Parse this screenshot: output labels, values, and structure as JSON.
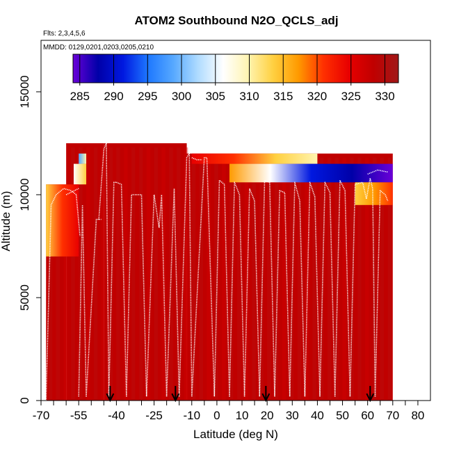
{
  "chart_data": {
    "type": "heatmap",
    "title": "ATOM2 Southbound N2O_QCLS_adj",
    "flights_note": "Flts: 2,3,4,5,6",
    "dates_note": "MMDD: 0129,0201,0203,0205,0210",
    "xlabel": "Latitude (deg N)",
    "ylabel": "Altitude (m)",
    "xlim": [
      -70,
      85
    ],
    "ylim": [
      0,
      17500
    ],
    "x_ticks": [
      -70,
      -55,
      -40,
      -25,
      -10,
      0,
      10,
      20,
      30,
      40,
      50,
      60,
      70,
      80
    ],
    "x_tick_labels": [
      "-70",
      "-55",
      "-40",
      "-25",
      "-10",
      "0",
      "10",
      "20",
      "30",
      "40",
      "50",
      "60",
      "70",
      "80"
    ],
    "x_minor_ticks": [
      -65,
      -60,
      -50,
      -45,
      -35,
      -30,
      -20,
      -15,
      -5,
      5,
      15,
      25,
      35,
      45,
      55,
      65,
      75
    ],
    "y_ticks": [
      0,
      5000,
      10000,
      15000
    ],
    "y_tick_labels": [
      "0",
      "5000",
      "10000",
      "15000"
    ],
    "colorbar": {
      "range": [
        284,
        332
      ],
      "ticks": [
        285,
        290,
        295,
        300,
        305,
        310,
        315,
        320,
        325,
        330
      ],
      "tick_labels": [
        "285",
        "290",
        "295",
        "300",
        "305",
        "310",
        "315",
        "320",
        "325",
        "330"
      ],
      "colors": [
        "#6a00d8",
        "#0000a8",
        "#0018e0",
        "#1e78ff",
        "#56a8ff",
        "#b0dcff",
        "#ffffff",
        "#fff4b0",
        "#ffd040",
        "#ff9a00",
        "#ff3000",
        "#e80000",
        "#c00000",
        "#a01818"
      ]
    },
    "background_value": 327,
    "upper_boundary": [
      {
        "lat_from": -68,
        "lat_to": -60,
        "top_alt": 10500
      },
      {
        "lat_from": -60,
        "lat_to": -45,
        "top_alt": 12500
      },
      {
        "lat_from": -45,
        "lat_to": -12,
        "top_alt": 12500
      },
      {
        "lat_from": -12,
        "lat_to": 70,
        "top_alt": 12000
      }
    ],
    "features": [
      {
        "lat_from": -55,
        "lat_to": -52,
        "alt_from": 11500,
        "alt_to": 12000,
        "values": [
          300,
          308
        ]
      },
      {
        "lat_from": -57,
        "lat_to": -52,
        "alt_from": 10500,
        "alt_to": 11500,
        "values": [
          306,
          312
        ]
      },
      {
        "lat_from": -68,
        "lat_to": -55,
        "alt_from": 7000,
        "alt_to": 10500,
        "values": [
          312,
          320,
          325
        ]
      },
      {
        "lat_from": -10,
        "lat_to": 40,
        "alt_from": 11500,
        "alt_to": 12000,
        "values": [
          326,
          320,
          312,
          308
        ]
      },
      {
        "lat_from": 5,
        "lat_to": 70,
        "alt_from": 10600,
        "alt_to": 11500,
        "values": [
          318,
          305,
          292,
          288,
          285
        ]
      },
      {
        "lat_from": 55,
        "lat_to": 70,
        "alt_from": 9500,
        "alt_to": 10600,
        "values": [
          312,
          318,
          322
        ]
      }
    ],
    "flight_tracks": [
      {
        "lats": [
          -68,
          -66,
          -64,
          -61,
          -58,
          -56,
          -54.5
        ],
        "alts": [
          0,
          9500,
          10000,
          10300,
          10200,
          10000,
          8000
        ]
      },
      {
        "lats": [
          -55,
          -53.5,
          -52
        ],
        "alts": [
          200,
          9500,
          200
        ]
      },
      {
        "lats": [
          -52,
          -48,
          -46
        ],
        "alts": [
          200,
          8800,
          8800
        ]
      },
      {
        "lats": [
          -47,
          -45,
          -44,
          -43
        ],
        "alts": [
          8800,
          12200,
          12500,
          200
        ]
      },
      {
        "lats": [
          -43,
          -41,
          -40
        ],
        "alts": [
          200,
          10600,
          10600
        ]
      },
      {
        "lats": [
          -40,
          -38,
          -36
        ],
        "alts": [
          10600,
          10500,
          200
        ]
      },
      {
        "lats": [
          -36,
          -34,
          -32
        ],
        "alts": [
          200,
          10000,
          10000
        ]
      },
      {
        "lats": [
          -32,
          -30,
          -28
        ],
        "alts": [
          10000,
          10000,
          200
        ]
      },
      {
        "lats": [
          -28,
          -25,
          -23
        ],
        "alts": [
          200,
          10000,
          8400
        ]
      },
      {
        "lats": [
          -23,
          -22,
          -20
        ],
        "alts": [
          8400,
          10000,
          200
        ]
      },
      {
        "lats": [
          -20,
          -17,
          -15
        ],
        "alts": [
          200,
          10300,
          200
        ]
      },
      {
        "lats": [
          -15,
          -12,
          -11,
          -10
        ],
        "alts": [
          200,
          11800,
          12000,
          200
        ]
      },
      {
        "lats": [
          -10,
          -5,
          -4,
          -1
        ],
        "alts": [
          200,
          11800,
          11800,
          200
        ]
      },
      {
        "lats": [
          -1,
          1,
          3,
          5
        ],
        "alts": [
          200,
          10700,
          10500,
          200
        ]
      },
      {
        "lats": [
          5,
          7,
          9,
          11
        ],
        "alts": [
          200,
          10600,
          10000,
          200
        ]
      },
      {
        "lats": [
          11,
          13,
          15,
          17
        ],
        "alts": [
          200,
          10300,
          9700,
          200
        ]
      },
      {
        "lats": [
          17,
          19,
          21,
          23
        ],
        "alts": [
          200,
          10700,
          10600,
          200
        ]
      },
      {
        "lats": [
          23,
          25,
          27,
          29
        ],
        "alts": [
          200,
          10200,
          10100,
          200
        ]
      },
      {
        "lats": [
          29,
          31,
          33,
          35
        ],
        "alts": [
          200,
          10600,
          9700,
          200
        ]
      },
      {
        "lats": [
          35,
          37,
          39,
          41
        ],
        "alts": [
          200,
          10600,
          9900,
          200
        ]
      },
      {
        "lats": [
          41,
          43,
          45,
          47
        ],
        "alts": [
          200,
          10600,
          10100,
          200
        ]
      },
      {
        "lats": [
          47,
          49,
          51,
          53
        ],
        "alts": [
          200,
          10700,
          10200,
          200
        ]
      },
      {
        "lats": [
          53,
          55,
          58,
          59.5
        ],
        "alts": [
          200,
          10500,
          10600,
          9800
        ]
      },
      {
        "lats": [
          59.5,
          61,
          62,
          63
        ],
        "alts": [
          9800,
          10800,
          10300,
          200
        ]
      },
      {
        "lats": [
          63,
          65,
          67,
          68
        ],
        "alts": [
          200,
          10200,
          10000,
          9700
        ]
      },
      {
        "lats": [
          -10,
          -8,
          -6
        ],
        "alts": [
          11800,
          11700,
          11700
        ]
      },
      {
        "lats": [
          -60,
          -55
        ],
        "alts": [
          10000,
          10300
        ]
      },
      {
        "lats": [
          60,
          64,
          68
        ],
        "alts": [
          11000,
          11200,
          11100
        ]
      }
    ],
    "arrow_markers_lat": [
      -42.5,
      -16.5,
      19.5,
      61
    ]
  }
}
